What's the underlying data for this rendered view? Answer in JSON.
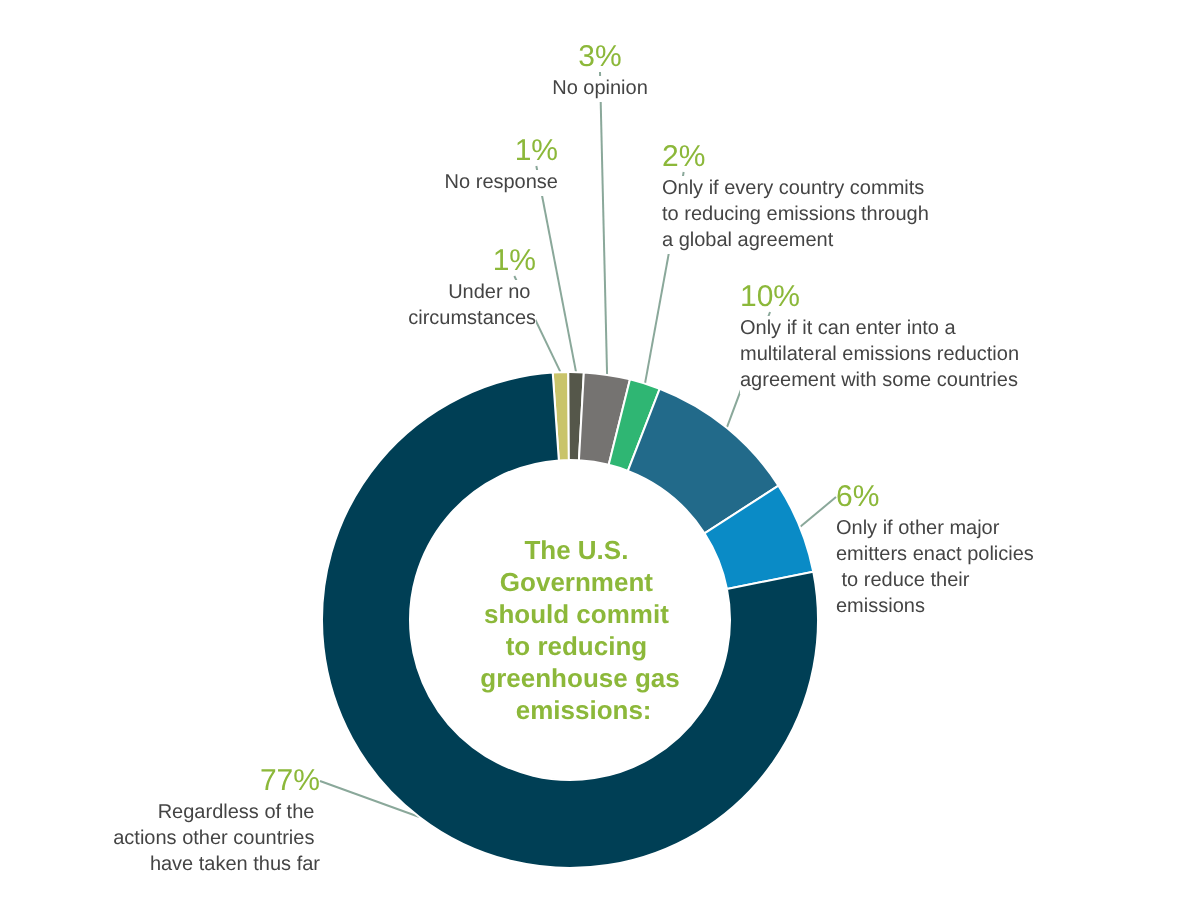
{
  "chart_data": {
    "type": "donut",
    "title": "The U.S. Government should commit to reducing greenhouse gas emissions:",
    "categories": [
      "Under no circumstances",
      "No response",
      "No opinion",
      "Only if every country commits to reducing emissions through a global agreement",
      "Only if it can enter into a multilateral emissions reduction agreement with some countries",
      "Only if other major emitters enact policies to reduce their emissions",
      "Regardless of the actions other countries have taken thus far"
    ],
    "values": [
      1,
      1,
      3,
      2,
      10,
      6,
      77
    ],
    "value_labels": [
      "1%",
      "1%",
      "3%",
      "2%",
      "10%",
      "6%",
      "77%"
    ],
    "colors": [
      "#c9c46a",
      "#55574a",
      "#757371",
      "#2fb673",
      "#226a8a",
      "#0a8bc6",
      "#003f55"
    ],
    "legend": false
  }
}
